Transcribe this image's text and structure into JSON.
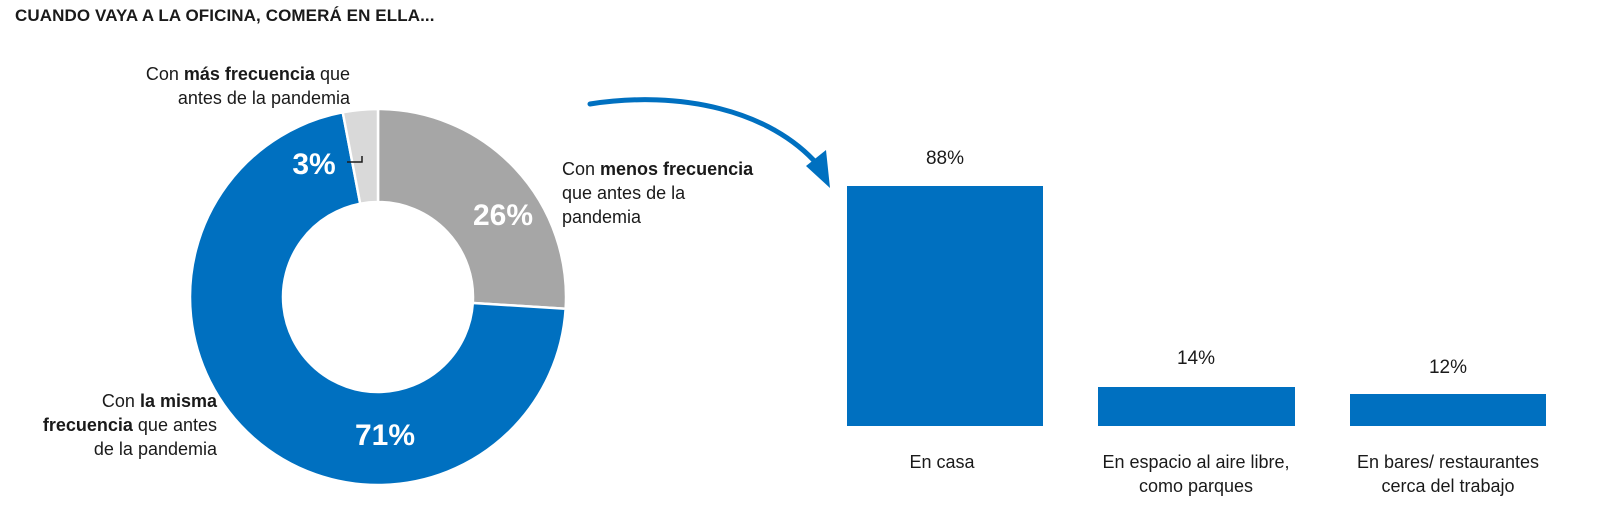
{
  "title": "CUANDO VAYA A LA OFICINA, COMERÁ EN ELLA...",
  "colors": {
    "blue": "#0070c0",
    "gray": "#a6a6a6",
    "lightgray": "#d9d9d9"
  },
  "labels": {
    "mas": {
      "a": "Con ",
      "b": "más frecuencia",
      "c": " que",
      "d": "antes de la pandemia"
    },
    "menos": {
      "a": "Con ",
      "b": "menos frecuencia",
      "c": "que antes de la",
      "d": "pandemia"
    },
    "misma": {
      "a": "Con ",
      "b": "la misma",
      "c": "frecuencia",
      "d": " que antes",
      "e": "de la pandemia"
    }
  },
  "chart_data": [
    {
      "type": "pie",
      "donut": true,
      "slices": [
        {
          "label": "Con menos frecuencia que antes de la pandemia",
          "value": 26,
          "display": "26%"
        },
        {
          "label": "Con la misma frecuencia que antes de la pandemia",
          "value": 71,
          "display": "71%"
        },
        {
          "label": "Con más frecuencia que antes de la pandemia",
          "value": 3,
          "display": "3%"
        }
      ]
    },
    {
      "type": "bar",
      "categories": [
        "En casa",
        "En espacio al aire libre, como parques",
        "En bares/ restaurantes cerca del trabajo"
      ],
      "category_lines": [
        [
          "En casa"
        ],
        [
          "En espacio al aire libre,",
          "como parques"
        ],
        [
          "En bares/ restaurantes",
          "cerca del trabajo"
        ]
      ],
      "values": [
        88,
        14,
        12
      ],
      "value_labels": [
        "88%",
        "14%",
        "12%"
      ]
    }
  ]
}
